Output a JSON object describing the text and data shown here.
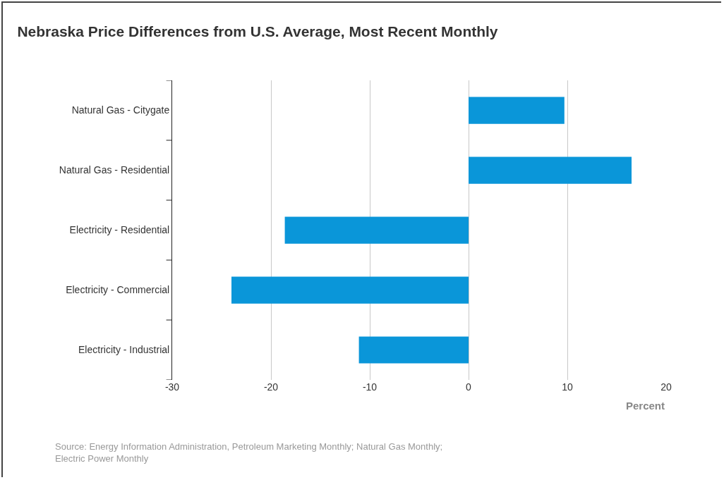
{
  "chart_data": {
    "type": "bar",
    "orientation": "horizontal",
    "title": "Nebraska Price Differences from U.S. Average, Most Recent Monthly",
    "categories": [
      "Natural Gas - Citygate",
      "Natural Gas - Residential",
      "Electricity - Residential",
      "Electricity - Commercial",
      "Electricity - Industrial"
    ],
    "values": [
      9.7,
      16.5,
      -18.6,
      -24.0,
      -11.1
    ],
    "color": "#0a96d9",
    "xlim": [
      -30,
      20
    ],
    "xticks": [
      -30,
      -20,
      -10,
      0,
      10,
      20
    ],
    "xlabel": "Percent",
    "grid": "x",
    "annotations": [
      "Source: Energy Information Administration, Petroleum Marketing Monthly; Natural Gas Monthly;\nElectric Power Monthly"
    ]
  }
}
